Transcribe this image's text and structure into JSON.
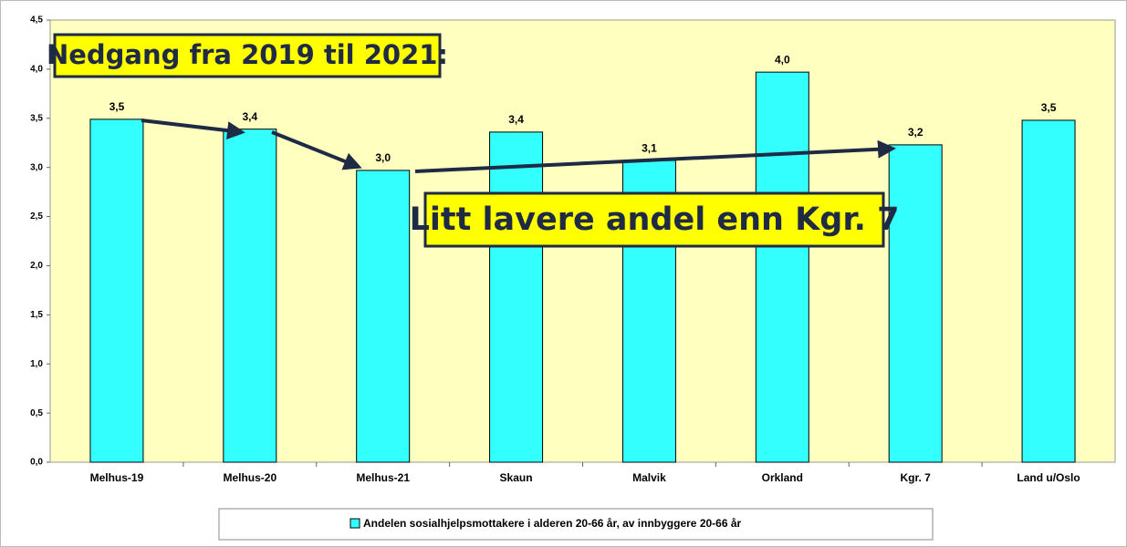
{
  "chart_data": {
    "type": "bar",
    "categories": [
      "Melhus-19",
      "Melhus-20",
      "Melhus-21",
      "Skaun",
      "Malvik",
      "Orkland",
      "Kgr. 7",
      "Land u/Oslo"
    ],
    "series": [
      {
        "name": "Andelen sosialhjelpsmottakere i alderen 20-66 år, av innbyggere 20-66 år",
        "color": "#33ffff",
        "values": [
          3.49,
          3.39,
          2.97,
          3.36,
          3.07,
          3.97,
          3.23,
          3.48
        ],
        "value_labels": [
          "3,5",
          "3,4",
          "3,0",
          "3,4",
          "3,1",
          "4,0",
          "3,2",
          "3,5"
        ]
      }
    ],
    "ylim": [
      0,
      4.5
    ],
    "yticks": [
      {
        "value": 0,
        "label": "0,0"
      },
      {
        "value": 0.5,
        "label": "0,5"
      },
      {
        "value": 1,
        "label": "1,0"
      },
      {
        "value": 1.5,
        "label": "1,5"
      },
      {
        "value": 2,
        "label": "2,0"
      },
      {
        "value": 2.5,
        "label": "2,5"
      },
      {
        "value": 3,
        "label": "3,0"
      },
      {
        "value": 3.5,
        "label": "3,5"
      },
      {
        "value": 4,
        "label": "4,0"
      },
      {
        "value": 4.5,
        "label": "4,5"
      }
    ],
    "annotations": [
      "Nedgang fra 2019 til 2021:",
      "Litt lavere andel enn Kgr. 7"
    ],
    "legend": "bottom"
  }
}
